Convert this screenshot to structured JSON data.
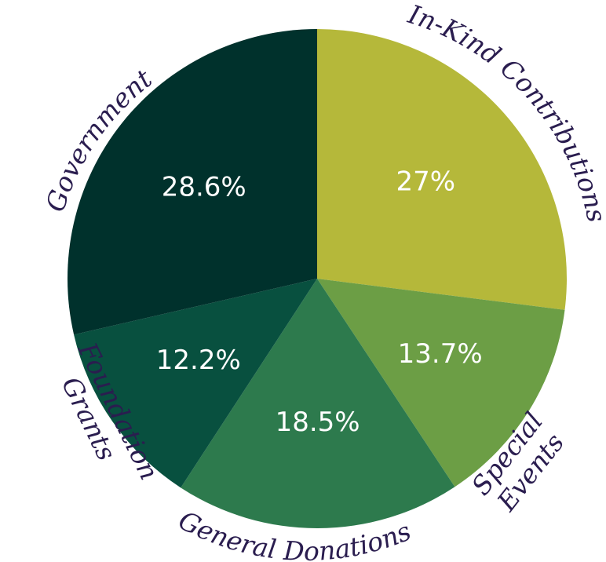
{
  "chart_data": {
    "type": "pie",
    "title": "",
    "start_angle_deg": 0,
    "direction": "clockwise",
    "slices": [
      {
        "label": "In-Kind Contributions",
        "value": 27.0,
        "value_label": "27%",
        "color": "#b5b83a"
      },
      {
        "label": "Special Events",
        "value": 13.7,
        "value_label": "13.7%",
        "color": "#6c9e45"
      },
      {
        "label": "General Donations",
        "value": 18.5,
        "value_label": "18.5%",
        "color": "#2d7a4d"
      },
      {
        "label": "Foundation Grants",
        "value": 12.2,
        "value_label": "12.2%",
        "color": "#08503f"
      },
      {
        "label": "Government",
        "value": 28.6,
        "value_label": "28.6%",
        "color": "#00312c"
      }
    ]
  }
}
